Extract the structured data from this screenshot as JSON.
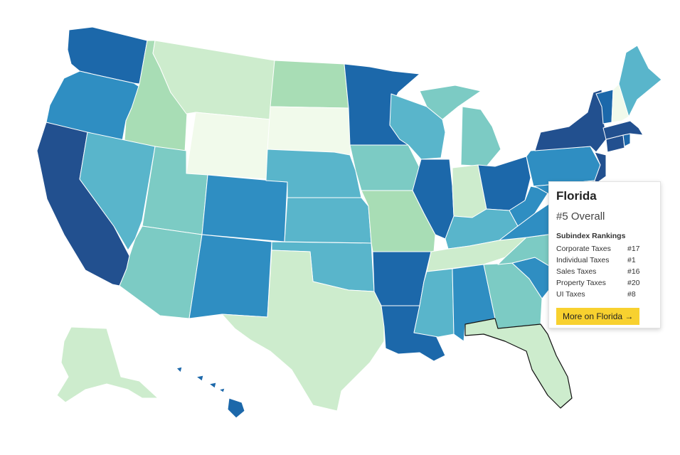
{
  "colors": {
    "tier1": "#f1faeb",
    "tier2": "#cdeccd",
    "tier3": "#a8ddb5",
    "tier4": "#7ccbc4",
    "tier5": "#59b5cb",
    "tier6": "#2f8ec2",
    "tier7": "#1c68aa",
    "tier8": "#22508f",
    "button": "#f8d12f",
    "highlight_stroke": "#111111"
  },
  "states": [
    {
      "name": "Washington",
      "tier": "tier7"
    },
    {
      "name": "Oregon",
      "tier": "tier6"
    },
    {
      "name": "California",
      "tier": "tier8"
    },
    {
      "name": "Idaho",
      "tier": "tier3"
    },
    {
      "name": "Nevada",
      "tier": "tier5"
    },
    {
      "name": "Montana",
      "tier": "tier2"
    },
    {
      "name": "Wyoming",
      "tier": "tier1"
    },
    {
      "name": "Utah",
      "tier": "tier4"
    },
    {
      "name": "Arizona",
      "tier": "tier4"
    },
    {
      "name": "Colorado",
      "tier": "tier6"
    },
    {
      "name": "New Mexico",
      "tier": "tier6"
    },
    {
      "name": "North Dakota",
      "tier": "tier3"
    },
    {
      "name": "South Dakota",
      "tier": "tier1"
    },
    {
      "name": "Nebraska",
      "tier": "tier5"
    },
    {
      "name": "Kansas",
      "tier": "tier5"
    },
    {
      "name": "Oklahoma",
      "tier": "tier5"
    },
    {
      "name": "Texas",
      "tier": "tier2"
    },
    {
      "name": "Minnesota",
      "tier": "tier7"
    },
    {
      "name": "Iowa",
      "tier": "tier4"
    },
    {
      "name": "Missouri",
      "tier": "tier3"
    },
    {
      "name": "Arkansas",
      "tier": "tier7"
    },
    {
      "name": "Louisiana",
      "tier": "tier7"
    },
    {
      "name": "Wisconsin",
      "tier": "tier5"
    },
    {
      "name": "Illinois",
      "tier": "tier7"
    },
    {
      "name": "Michigan",
      "tier": "tier4"
    },
    {
      "name": "Indiana",
      "tier": "tier2"
    },
    {
      "name": "Ohio",
      "tier": "tier7"
    },
    {
      "name": "Kentucky",
      "tier": "tier5"
    },
    {
      "name": "Tennessee",
      "tier": "tier2"
    },
    {
      "name": "Mississippi",
      "tier": "tier5"
    },
    {
      "name": "Alabama",
      "tier": "tier6"
    },
    {
      "name": "Georgia",
      "tier": "tier4"
    },
    {
      "name": "Florida",
      "tier": "tier2",
      "highlighted": true
    },
    {
      "name": "South Carolina",
      "tier": "tier6"
    },
    {
      "name": "North Carolina",
      "tier": "tier4"
    },
    {
      "name": "Virginia",
      "tier": "tier6"
    },
    {
      "name": "West Virginia",
      "tier": "tier6"
    },
    {
      "name": "Pennsylvania",
      "tier": "tier6"
    },
    {
      "name": "New York",
      "tier": "tier8"
    },
    {
      "name": "New Jersey",
      "tier": "tier8"
    },
    {
      "name": "Maryland",
      "tier": "tier6"
    },
    {
      "name": "Delaware",
      "tier": "tier6"
    },
    {
      "name": "Connecticut",
      "tier": "tier8"
    },
    {
      "name": "Rhode Island",
      "tier": "tier7"
    },
    {
      "name": "Massachusetts",
      "tier": "tier8"
    },
    {
      "name": "Vermont",
      "tier": "tier7"
    },
    {
      "name": "New Hampshire",
      "tier": "tier1"
    },
    {
      "name": "Maine",
      "tier": "tier5"
    },
    {
      "name": "Alaska",
      "tier": "tier2"
    },
    {
      "name": "Hawaii",
      "tier": "tier7"
    }
  ],
  "tooltip": {
    "state": "Florida",
    "overall": "#5 Overall",
    "subindex_heading": "Subindex Rankings",
    "rows": [
      {
        "label": "Corporate Taxes",
        "value": "#17"
      },
      {
        "label": "Individual Taxes",
        "value": "#1"
      },
      {
        "label": "Sales Taxes",
        "value": "#16"
      },
      {
        "label": "Property Taxes",
        "value": "#20"
      },
      {
        "label": "UI Taxes",
        "value": "#8"
      }
    ],
    "button_label": "More on Florida →"
  }
}
